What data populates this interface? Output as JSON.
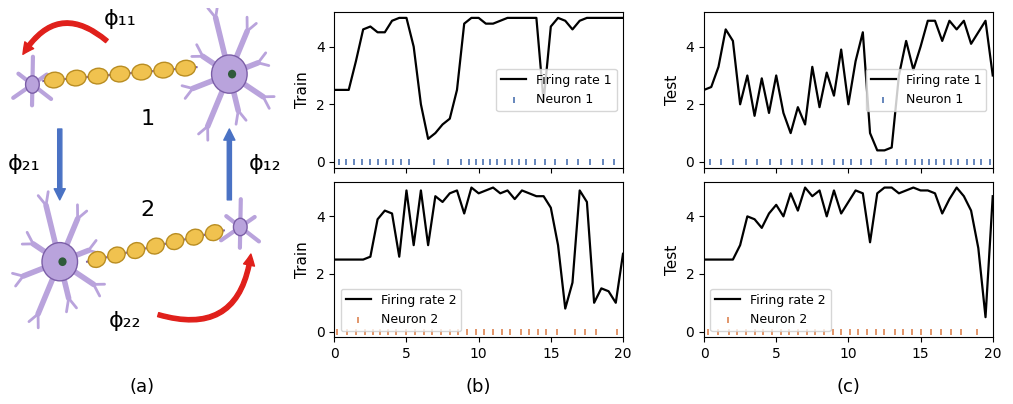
{
  "panel_labels": [
    "(a)",
    "(b)",
    "(c)"
  ],
  "diagram": {
    "nodes": [
      {
        "label": "1"
      },
      {
        "label": "2"
      }
    ],
    "edges": [
      {
        "from": "1",
        "to": "1",
        "label": "ϕ₁₁"
      },
      {
        "from": "1",
        "to": "2",
        "label": "ϕ₂₁"
      },
      {
        "from": "2",
        "to": "1",
        "label": "ϕ₁₂"
      },
      {
        "from": "2",
        "to": "2",
        "label": "ϕ₂₂"
      }
    ]
  },
  "chart_data": [
    {
      "type": "line",
      "ylabel": "Train",
      "xlim": [
        0,
        20
      ],
      "xticks": [
        0,
        5,
        10,
        15,
        20
      ],
      "ylim": [
        -0.2,
        5.2
      ],
      "yticks": [
        0,
        2,
        4
      ],
      "legend": "center right",
      "tick_labels": "y",
      "series": [
        {
          "name": "Firing rate 1",
          "type": "line",
          "color": "#000000",
          "x": [
            0,
            0.5,
            1,
            1.5,
            2,
            2.5,
            3,
            3.5,
            4,
            4.5,
            5,
            5.5,
            6,
            6.5,
            7,
            7.5,
            8,
            8.5,
            9,
            9.5,
            10,
            10.5,
            11,
            11.5,
            12,
            12.5,
            13,
            13.5,
            14,
            14.5,
            15,
            15.5,
            16,
            16.5,
            17,
            17.5,
            18,
            18.5,
            19,
            19.5,
            20
          ],
          "values": [
            2.5,
            2.5,
            2.5,
            3.5,
            4.6,
            4.7,
            4.5,
            4.5,
            4.9,
            5.0,
            5.0,
            4.0,
            2.0,
            0.8,
            1.0,
            1.3,
            1.5,
            2.5,
            4.8,
            5.0,
            5.0,
            4.8,
            4.8,
            4.9,
            5.0,
            5.0,
            5.0,
            5.0,
            5.0,
            2.1,
            4.7,
            5.0,
            4.9,
            4.6,
            4.9,
            5.0,
            5.0,
            5.0,
            5.0,
            5.0,
            5.0
          ]
        },
        {
          "name": "Neuron 1",
          "type": "scatter",
          "marker": "|",
          "color": "#4c72b0",
          "x": [
            0.3,
            0.8,
            1.4,
            1.9,
            2.5,
            3.0,
            3.6,
            4.1,
            4.6,
            5.2,
            6.9,
            7.9,
            8.8,
            9.3,
            9.8,
            10.3,
            10.8,
            11.3,
            11.8,
            12.3,
            12.8,
            13.3,
            13.9,
            14.6,
            15.3,
            16.1,
            16.9,
            17.7,
            18.6,
            19.4
          ],
          "values": [
            0,
            0,
            0,
            0,
            0,
            0,
            0,
            0,
            0,
            0,
            0,
            0,
            0,
            0,
            0,
            0,
            0,
            0,
            0,
            0,
            0,
            0,
            0,
            0,
            0,
            0,
            0,
            0,
            0,
            0
          ]
        }
      ]
    },
    {
      "type": "line",
      "ylabel": "Train",
      "xlim": [
        0,
        20
      ],
      "xticks": [
        0,
        5,
        10,
        15,
        20
      ],
      "ylim": [
        -0.2,
        5.2
      ],
      "yticks": [
        0,
        2,
        4
      ],
      "legend": "lower left",
      "series": [
        {
          "name": "Firing rate 2",
          "type": "line",
          "color": "#000000",
          "x": [
            0,
            0.5,
            1,
            1.5,
            2,
            2.5,
            3,
            3.5,
            4,
            4.5,
            5,
            5.5,
            6,
            6.5,
            7,
            7.5,
            8,
            8.5,
            9,
            9.5,
            10,
            10.5,
            11,
            11.5,
            12,
            12.5,
            13,
            13.5,
            14,
            14.5,
            15,
            15.5,
            16,
            16.5,
            17,
            17.5,
            18,
            18.5,
            19,
            19.5,
            20
          ],
          "values": [
            2.5,
            2.5,
            2.5,
            2.5,
            2.5,
            2.6,
            3.9,
            4.2,
            4.1,
            2.6,
            4.9,
            3.0,
            4.9,
            3.0,
            4.7,
            4.5,
            4.8,
            4.9,
            4.1,
            5.0,
            4.8,
            4.9,
            5.0,
            4.8,
            4.9,
            4.6,
            4.9,
            4.8,
            4.7,
            4.7,
            4.3,
            3.0,
            0.8,
            1.7,
            4.9,
            4.5,
            1.0,
            1.5,
            1.4,
            1.0,
            2.7
          ]
        },
        {
          "name": "Neuron 2",
          "type": "scatter",
          "marker": "|",
          "color": "#dd8452",
          "x": [
            0.2,
            0.9,
            1.5,
            2.1,
            2.7,
            3.2,
            3.7,
            4.3,
            5.0,
            5.6,
            6.2,
            6.8,
            7.4,
            8.0,
            8.6,
            9.2,
            9.8,
            10.4,
            11.0,
            11.6,
            12.2,
            12.9,
            13.5,
            14.1,
            14.7,
            15.4,
            16.7,
            17.4,
            18.1,
            19.6
          ],
          "values": [
            0,
            0,
            0,
            0,
            0,
            0,
            0,
            0,
            0,
            0,
            0,
            0,
            0,
            0,
            0,
            0,
            0,
            0,
            0,
            0,
            0,
            0,
            0,
            0,
            0,
            0,
            0,
            0,
            0,
            0
          ]
        }
      ]
    },
    {
      "type": "line",
      "ylabel": "Test",
      "xlim": [
        0,
        20
      ],
      "xticks": [
        0,
        5,
        10,
        15,
        20
      ],
      "ylim": [
        -0.2,
        5.2
      ],
      "yticks": [
        0,
        2,
        4
      ],
      "legend": "center right",
      "tick_labels": "y",
      "series": [
        {
          "name": "Firing rate 1",
          "type": "line",
          "color": "#000000",
          "x": [
            0,
            0.5,
            1,
            1.5,
            2,
            2.5,
            3,
            3.5,
            4,
            4.5,
            5,
            5.5,
            6,
            6.5,
            7,
            7.5,
            8,
            8.5,
            9,
            9.5,
            10,
            10.5,
            11,
            11.5,
            12,
            12.5,
            13,
            13.5,
            14,
            14.5,
            15,
            15.5,
            16,
            16.5,
            17,
            17.5,
            18,
            18.5,
            19,
            19.5,
            20
          ],
          "values": [
            2.5,
            2.6,
            3.3,
            4.6,
            4.2,
            2.0,
            3.0,
            1.6,
            2.9,
            1.7,
            3.0,
            1.7,
            1.0,
            1.9,
            1.3,
            3.3,
            1.9,
            3.1,
            2.3,
            3.9,
            2.0,
            3.5,
            4.5,
            1.0,
            0.4,
            0.4,
            0.5,
            3.0,
            4.2,
            3.2,
            4.0,
            4.9,
            4.9,
            4.2,
            4.9,
            4.6,
            4.9,
            4.1,
            4.5,
            4.9,
            3.0
          ]
        },
        {
          "name": "Neuron 1",
          "type": "scatter",
          "marker": "|",
          "color": "#4c72b0",
          "x": [
            0.4,
            1.2,
            2.0,
            2.9,
            3.7,
            4.6,
            5.3,
            6.1,
            6.8,
            7.5,
            8.2,
            9.0,
            9.6,
            10.2,
            10.9,
            11.6,
            12.6,
            13.4,
            14.0,
            14.6,
            15.1,
            15.6,
            16.1,
            16.6,
            17.1,
            17.6,
            18.2,
            18.7,
            19.2,
            19.8
          ],
          "values": [
            0,
            0,
            0,
            0,
            0,
            0,
            0,
            0,
            0,
            0,
            0,
            0,
            0,
            0,
            0,
            0,
            0,
            0,
            0,
            0,
            0,
            0,
            0,
            0,
            0,
            0,
            0,
            0,
            0,
            0
          ]
        }
      ]
    },
    {
      "type": "line",
      "ylabel": "Test",
      "xlim": [
        0,
        20
      ],
      "xticks": [
        0,
        5,
        10,
        15,
        20
      ],
      "ylim": [
        -0.2,
        5.2
      ],
      "yticks": [
        0,
        2,
        4
      ],
      "legend": "lower left",
      "series": [
        {
          "name": "Firing rate 2",
          "type": "line",
          "color": "#000000",
          "x": [
            0,
            0.5,
            1,
            1.5,
            2,
            2.5,
            3,
            3.5,
            4,
            4.5,
            5,
            5.5,
            6,
            6.5,
            7,
            7.5,
            8,
            8.5,
            9,
            9.5,
            10,
            10.5,
            11,
            11.5,
            12,
            12.5,
            13,
            13.5,
            14,
            14.5,
            15,
            15.5,
            16,
            16.5,
            17,
            17.5,
            18,
            18.5,
            19,
            19.5,
            20
          ],
          "values": [
            2.5,
            2.5,
            2.5,
            2.5,
            2.5,
            3.0,
            4.0,
            3.9,
            3.6,
            4.1,
            4.4,
            4.0,
            4.8,
            4.2,
            5.0,
            4.7,
            4.9,
            4.0,
            4.9,
            4.1,
            4.5,
            4.9,
            4.8,
            3.1,
            4.8,
            5.0,
            5.0,
            4.8,
            4.9,
            5.0,
            4.9,
            4.9,
            4.8,
            4.1,
            4.6,
            5.0,
            4.7,
            4.2,
            2.9,
            0.5,
            4.7
          ]
        },
        {
          "name": "Neuron 2",
          "type": "scatter",
          "marker": "|",
          "color": "#dd8452",
          "x": [
            0.3,
            1.0,
            1.7,
            2.3,
            2.9,
            3.5,
            4.1,
            4.7,
            5.3,
            5.9,
            6.5,
            7.1,
            7.7,
            8.3,
            8.9,
            9.5,
            10.1,
            10.7,
            11.3,
            11.9,
            12.5,
            13.2,
            13.8,
            14.4,
            15.0,
            15.7,
            16.4,
            17.1,
            17.8,
            18.9
          ],
          "values": [
            0,
            0,
            0,
            0,
            0,
            0,
            0,
            0,
            0,
            0,
            0,
            0,
            0,
            0,
            0,
            0,
            0,
            0,
            0,
            0,
            0,
            0,
            0,
            0,
            0,
            0,
            0,
            0,
            0,
            0
          ]
        }
      ]
    }
  ]
}
